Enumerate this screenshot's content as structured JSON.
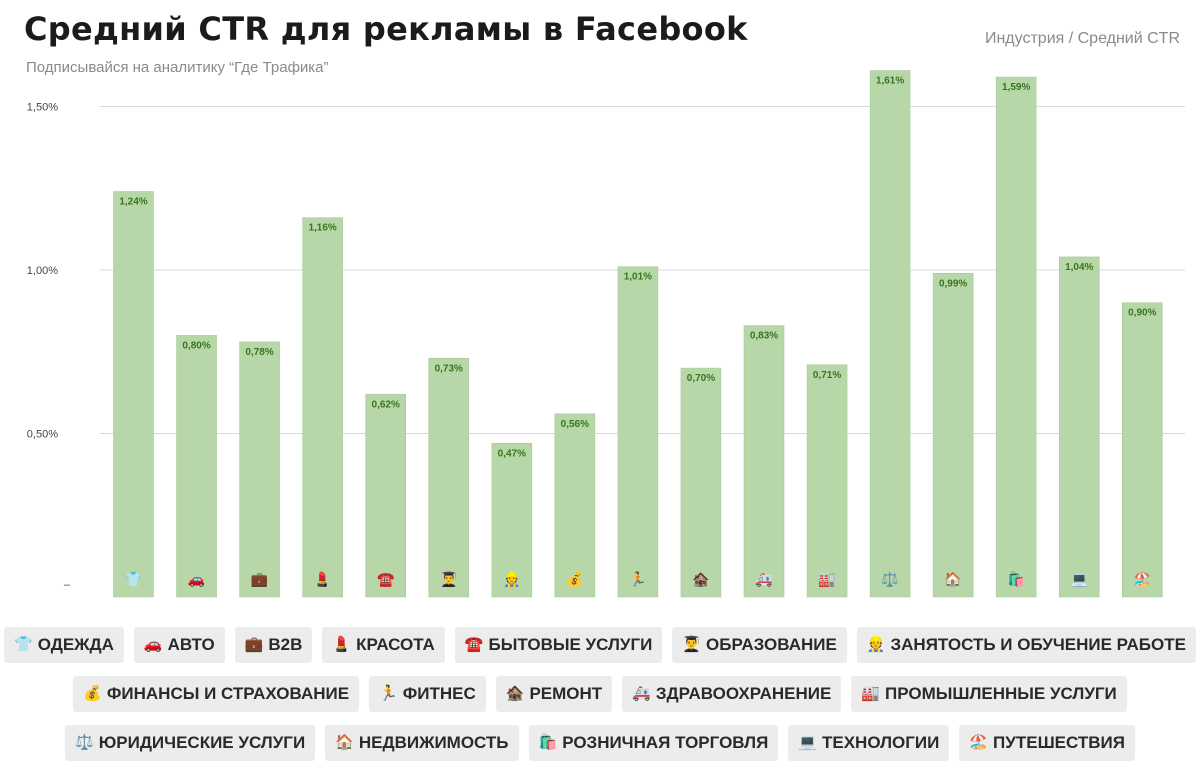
{
  "header": {
    "title": "Средний CTR для рекламы в Facebook",
    "subtitle": "Подписывайся на аналитику “Где Трафика”",
    "legend_caption": "Индустрия / Средний CTR"
  },
  "colors": {
    "bar": "#b7d7a8",
    "grid": "#d9d9d9",
    "value_label": "#38761d",
    "axis_text": "#444444"
  },
  "chart_data": {
    "type": "bar",
    "title": "Средний CTR для рекламы в Facebook",
    "xlabel": "",
    "ylabel": "",
    "ylim": [
      0,
      1.6
    ],
    "grid": true,
    "y_ticks": [
      {
        "value": 0,
        "label": "–"
      },
      {
        "value": 0.5,
        "label": "0,50%"
      },
      {
        "value": 1.0,
        "label": "1,00%"
      },
      {
        "value": 1.5,
        "label": "1,50%"
      }
    ],
    "categories": [
      "Одежда",
      "Авто",
      "B2B",
      "Красота",
      "Бытовые услуги",
      "Образование",
      "Занятость и обучение работе",
      "Финансы и страхование",
      "Фитнес",
      "Ремонт",
      "Здравоохранение",
      "Промышленные услуги",
      "Юридические услуги",
      "Недвижимость",
      "Розничная торговля",
      "Технологии",
      "Путешествия"
    ],
    "values": [
      1.24,
      0.8,
      0.78,
      1.16,
      0.62,
      0.73,
      0.47,
      0.56,
      1.01,
      0.7,
      0.83,
      0.71,
      1.61,
      0.99,
      1.59,
      1.04,
      0.9
    ],
    "value_labels": [
      "1,24%",
      "0,80%",
      "0,78%",
      "1,16%",
      "0,62%",
      "0,73%",
      "0,47%",
      "0,56%",
      "1,01%",
      "0,70%",
      "0,83%",
      "0,71%",
      "1,61%",
      "0,99%",
      "1,59%",
      "1,04%",
      "0,90%"
    ],
    "icons": [
      "👕",
      "🚗",
      "💼",
      "💄",
      "☎️",
      "👨‍🎓",
      "👷",
      "💰",
      "🏃",
      "🏚️",
      "🚑",
      "🏭",
      "⚖️",
      "🏠",
      "🛍️",
      "💻",
      "🏖️"
    ]
  },
  "legend": {
    "rows": [
      [
        {
          "icon": "👕",
          "label": "ОДЕЖДА"
        },
        {
          "icon": "🚗",
          "label": "АВТО"
        },
        {
          "icon": "💼",
          "label": "B2B"
        },
        {
          "icon": "💄",
          "label": "КРАСОТА"
        },
        {
          "icon": "☎️",
          "label": "БЫТОВЫЕ УСЛУГИ"
        },
        {
          "icon": "👨‍🎓",
          "label": "ОБРАЗОВАНИЕ"
        },
        {
          "icon": "👷",
          "label": "ЗАНЯТОСТЬ И ОБУЧЕНИЕ РАБОТЕ"
        }
      ],
      [
        {
          "icon": "💰",
          "label": "ФИНАНСЫ И СТРАХОВАНИЕ"
        },
        {
          "icon": "🏃",
          "label": "ФИТНЕС"
        },
        {
          "icon": "🏚️",
          "label": "РЕМОНТ"
        },
        {
          "icon": "🚑",
          "label": "ЗДРАВООХРАНЕНИЕ"
        },
        {
          "icon": "🏭",
          "label": "ПРОМЫШЛЕННЫЕ УСЛУГИ"
        }
      ],
      [
        {
          "icon": "⚖️",
          "label": "ЮРИДИЧЕСКИЕ УСЛУГИ"
        },
        {
          "icon": "🏠",
          "label": "НЕДВИЖИМОСТЬ"
        },
        {
          "icon": "🛍️",
          "label": "РОЗНИЧНАЯ ТОРГОВЛЯ"
        },
        {
          "icon": "💻",
          "label": "ТЕХНОЛОГИИ"
        },
        {
          "icon": "🏖️",
          "label": "ПУТЕШЕСТВИЯ"
        }
      ]
    ]
  }
}
